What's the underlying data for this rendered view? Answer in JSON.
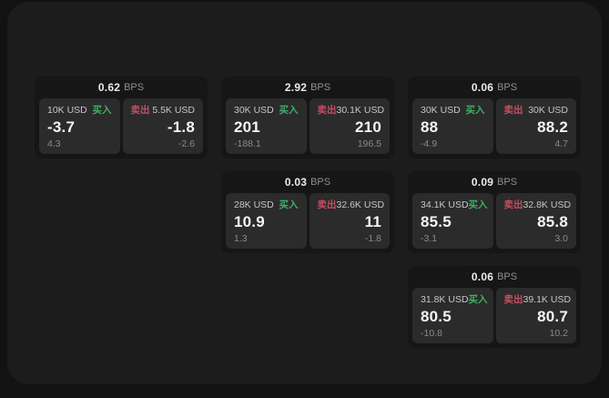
{
  "page": {
    "background": "#121212",
    "panel_background": "#1c1c1c",
    "card_background": "#161616",
    "subpanel_background": "#2b2b2b"
  },
  "labels": {
    "bps_unit": "BPS",
    "buy": "买入",
    "sell": "卖出"
  },
  "colors": {
    "buy": "#42ad68",
    "sell": "#c44f63",
    "price": "#f5f5f5",
    "delta": "#8a8a8a",
    "size": "#c6c6c6"
  },
  "cards": [
    {
      "row": 1,
      "col": 1,
      "bps": "0.62",
      "buy": {
        "size": "10K USD",
        "price": "-3.7",
        "delta": "4.3"
      },
      "sell": {
        "size": "5.5K USD",
        "price": "-1.8",
        "delta": "-2.6"
      }
    },
    {
      "row": 1,
      "col": 2,
      "bps": "2.92",
      "buy": {
        "size": "30K USD",
        "price": "201",
        "delta": "-188.1"
      },
      "sell": {
        "size": "30.1K USD",
        "price": "210",
        "delta": "196.5"
      }
    },
    {
      "row": 1,
      "col": 3,
      "bps": "0.06",
      "buy": {
        "size": "30K USD",
        "price": "88",
        "delta": "-4.9"
      },
      "sell": {
        "size": "30K USD",
        "price": "88.2",
        "delta": "4.7"
      }
    },
    {
      "row": 2,
      "col": 2,
      "bps": "0.03",
      "buy": {
        "size": "28K USD",
        "price": "10.9",
        "delta": "1.3"
      },
      "sell": {
        "size": "32.6K USD",
        "price": "11",
        "delta": "-1.8"
      }
    },
    {
      "row": 2,
      "col": 3,
      "bps": "0.09",
      "buy": {
        "size": "34.1K USD",
        "price": "85.5",
        "delta": "-3.1"
      },
      "sell": {
        "size": "32.8K USD",
        "price": "85.8",
        "delta": "3.0"
      }
    },
    {
      "row": 3,
      "col": 3,
      "bps": "0.06",
      "buy": {
        "size": "31.8K USD",
        "price": "80.5",
        "delta": "-10.8"
      },
      "sell": {
        "size": "39.1K USD",
        "price": "80.7",
        "delta": "10.2"
      }
    }
  ]
}
